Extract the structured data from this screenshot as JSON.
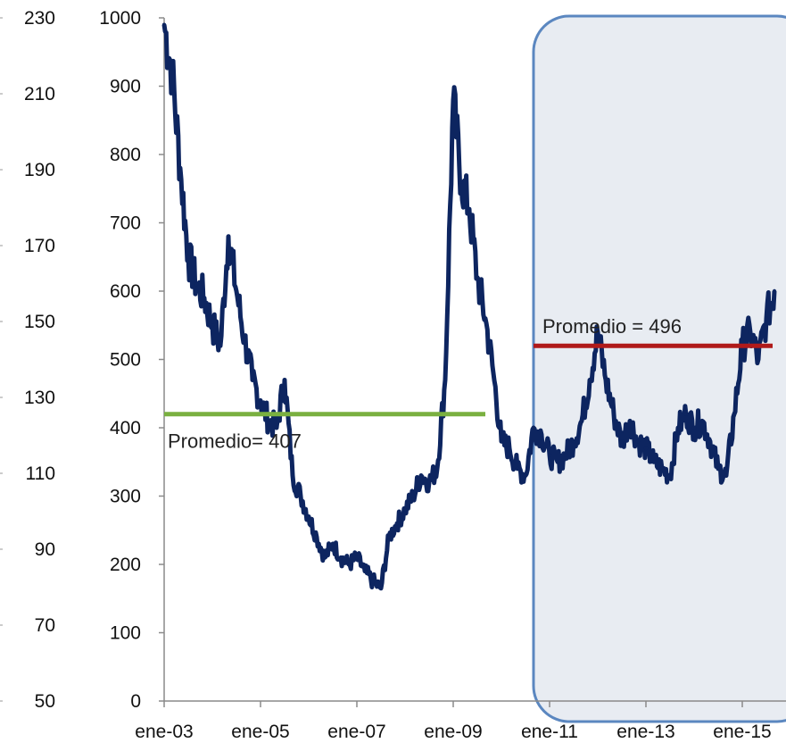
{
  "chart_data": {
    "type": "line",
    "title": "",
    "xlabel": "",
    "ylabel": "",
    "x_ticks": [
      "ene-03",
      "ene-05",
      "ene-07",
      "ene-09",
      "ene-11",
      "ene-13",
      "ene-15"
    ],
    "x_range": [
      "2003-01",
      "2015-10"
    ],
    "y_ticks": [
      0,
      100,
      200,
      300,
      400,
      500,
      600,
      700,
      800,
      900,
      1000
    ],
    "ylim": [
      0,
      1000
    ],
    "y2_ticks": [
      50,
      70,
      90,
      110,
      130,
      150,
      170,
      190,
      210,
      230
    ],
    "y2lim": [
      50,
      230
    ],
    "grid": false,
    "series": [
      {
        "color": "#0d2560",
        "x": [
          "2003-01",
          "2003-03",
          "2003-05",
          "2003-07",
          "2003-09",
          "2003-11",
          "2004-01",
          "2004-03",
          "2004-05",
          "2004-07",
          "2004-09",
          "2004-11",
          "2005-01",
          "2005-03",
          "2005-05",
          "2005-07",
          "2005-09",
          "2005-11",
          "2006-01",
          "2006-03",
          "2006-05",
          "2006-07",
          "2006-09",
          "2006-11",
          "2007-01",
          "2007-03",
          "2007-05",
          "2007-07",
          "2007-09",
          "2007-11",
          "2008-01",
          "2008-03",
          "2008-05",
          "2008-07",
          "2008-09",
          "2008-11",
          "2009-01",
          "2009-03",
          "2009-05",
          "2009-07",
          "2009-09",
          "2009-11",
          "2010-01",
          "2010-03",
          "2010-05",
          "2010-07",
          "2010-09",
          "2010-11",
          "2011-01",
          "2011-03",
          "2011-05",
          "2011-07",
          "2011-09",
          "2011-11",
          "2012-01",
          "2012-03",
          "2012-05",
          "2012-07",
          "2012-09",
          "2012-11",
          "2013-01",
          "2013-03",
          "2013-05",
          "2013-07",
          "2013-09",
          "2013-11",
          "2014-01",
          "2014-03",
          "2014-05",
          "2014-07",
          "2014-09",
          "2014-11",
          "2015-01",
          "2015-03",
          "2015-05",
          "2015-07",
          "2015-09"
        ],
        "values": [
          990,
          920,
          780,
          650,
          610,
          590,
          550,
          520,
          680,
          600,
          530,
          470,
          440,
          410,
          400,
          470,
          330,
          300,
          270,
          240,
          210,
          230,
          210,
          200,
          210,
          190,
          175,
          165,
          240,
          260,
          280,
          300,
          330,
          320,
          340,
          470,
          880,
          760,
          720,
          620,
          560,
          480,
          380,
          370,
          340,
          330,
          400,
          390,
          360,
          350,
          360,
          380,
          410,
          470,
          540,
          470,
          420,
          380,
          410,
          380,
          370,
          350,
          340,
          330,
          400,
          420,
          400,
          410,
          380,
          340,
          330,
          420,
          520,
          540,
          500,
          560,
          600
        ]
      }
    ],
    "annotations": [
      {
        "text": "Promedio= 407",
        "value": 420,
        "x_start": "2003-01",
        "x_end": "2009-09",
        "color": "#7ab040"
      },
      {
        "text": "Promedio = 496",
        "value": 520,
        "x_start": "2010-09",
        "x_end": "2015-10",
        "color": "#b01a1a"
      }
    ],
    "highlight_region": {
      "x_start": "2010-09",
      "x_end": "2015-10",
      "fill": "#e8ecf2",
      "stroke": "#5b87c0"
    }
  }
}
